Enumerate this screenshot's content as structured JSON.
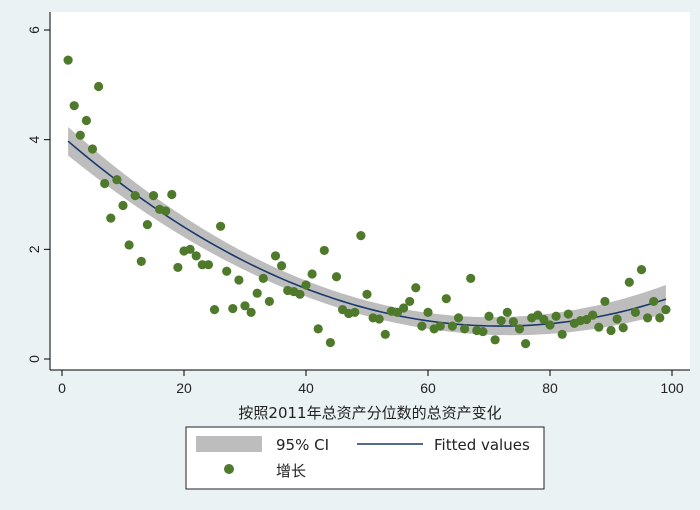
{
  "chart_data": {
    "type": "scatter",
    "title": "",
    "xlabel": "按照2011年总资产分位数的总资产变化",
    "ylabel": "",
    "xlim": [
      0,
      100
    ],
    "ylim": [
      0,
      6
    ],
    "x_ticks": [
      0,
      20,
      40,
      60,
      80,
      100
    ],
    "y_ticks": [
      0,
      2,
      4,
      6
    ],
    "grid": false,
    "legend_position": "bottom",
    "colors": {
      "points": "#4f7a2b",
      "fit_line": "#1a3a6b",
      "ci_band": "#bdbdbd",
      "plot_background": "#ffffff",
      "outer_background": "#eaf2f3"
    },
    "legend": {
      "ci_label": "95% CI",
      "fit_label": "Fitted values",
      "points_label": "增长"
    },
    "series": [
      {
        "name": "增长",
        "kind": "scatter",
        "x": [
          1,
          2,
          3,
          4,
          5,
          6,
          7,
          8,
          9,
          10,
          11,
          12,
          13,
          14,
          15,
          16,
          17,
          18,
          19,
          20,
          21,
          22,
          23,
          24,
          25,
          26,
          27,
          28,
          29,
          30,
          31,
          32,
          33,
          34,
          35,
          36,
          37,
          38,
          39,
          40,
          41,
          42,
          43,
          44,
          45,
          46,
          47,
          48,
          49,
          50,
          51,
          52,
          53,
          54,
          55,
          56,
          57,
          58,
          59,
          60,
          61,
          62,
          63,
          64,
          65,
          66,
          67,
          68,
          69,
          70,
          71,
          72,
          73,
          74,
          75,
          76,
          77,
          78,
          79,
          80,
          81,
          82,
          83,
          84,
          85,
          86,
          87,
          88,
          89,
          90,
          91,
          92,
          93,
          94,
          95,
          96,
          97,
          98,
          99
        ],
        "y": [
          5.45,
          4.62,
          4.08,
          4.35,
          3.83,
          4.97,
          3.2,
          2.57,
          3.27,
          2.8,
          2.08,
          2.98,
          1.78,
          2.45,
          2.98,
          2.73,
          2.7,
          3.0,
          1.67,
          1.97,
          2.0,
          1.88,
          1.72,
          1.72,
          0.9,
          2.42,
          1.6,
          0.92,
          1.44,
          0.97,
          0.85,
          1.2,
          1.47,
          1.05,
          1.88,
          1.7,
          1.25,
          1.23,
          1.18,
          1.35,
          1.55,
          0.55,
          1.98,
          0.3,
          1.5,
          0.9,
          0.83,
          0.85,
          2.25,
          1.18,
          0.75,
          0.73,
          0.45,
          0.87,
          0.85,
          0.93,
          1.05,
          1.3,
          0.6,
          0.85,
          0.55,
          0.6,
          1.1,
          0.6,
          0.75,
          0.55,
          1.47,
          0.52,
          0.5,
          0.78,
          0.35,
          0.7,
          0.85,
          0.68,
          0.55,
          0.28,
          0.75,
          0.8,
          0.72,
          0.62,
          0.78,
          0.45,
          0.82,
          0.65,
          0.7,
          0.72,
          0.8,
          0.58,
          1.05,
          0.52,
          0.73,
          0.57,
          1.4,
          0.85,
          1.63,
          0.75,
          1.05,
          0.75,
          0.9
        ]
      },
      {
        "name": "Fitted values",
        "kind": "quadratic_fit",
        "coefficients": {
          "intercept": 4.0678,
          "linear": -0.0964,
          "quadratic": 0.00067
        },
        "ci_halfwidth_center": 0.14,
        "ci_halfwidth_edge": 0.26
      }
    ]
  }
}
